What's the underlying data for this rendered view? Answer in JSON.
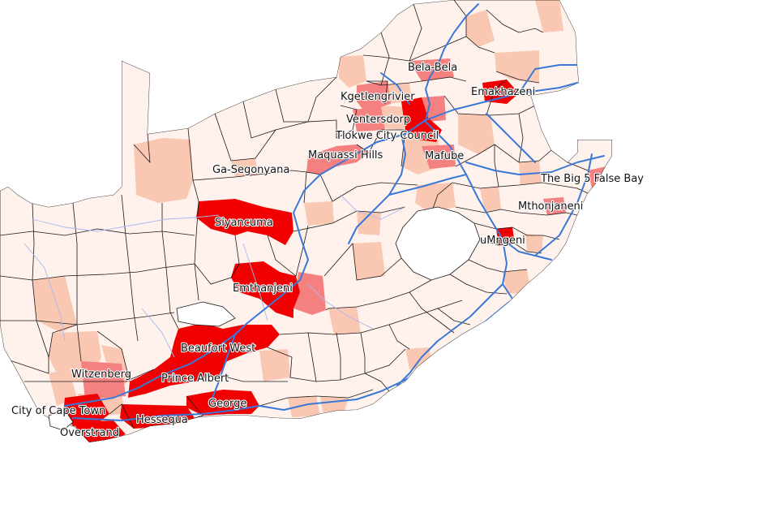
{
  "colors": {
    "none": "#fff1ec",
    "low": "#fac7b3",
    "mid": "#f58080",
    "high": "#f00000",
    "border": "#1a1a1a",
    "road": "#3a78d8",
    "river": "#a9b8f0",
    "background": "#ffffff"
  },
  "labels": [
    {
      "id": "bela-bela",
      "text": "Bela-Bela",
      "level": "mid"
    },
    {
      "id": "emakhazeni",
      "text": "Emakhazeni",
      "level": "high"
    },
    {
      "id": "kgetlengrivier",
      "text": "Kgetlengrivier",
      "level": "mid"
    },
    {
      "id": "ventersdorp",
      "text": "Ventersdorp",
      "level": "mid"
    },
    {
      "id": "tlokwe",
      "text": "Tlokwe City Council",
      "level": "high"
    },
    {
      "id": "maquassi",
      "text": "Maquassi Hills",
      "level": "mid"
    },
    {
      "id": "mafube",
      "text": "Mafube",
      "level": "mid"
    },
    {
      "id": "ga-segonyana",
      "text": "Ga-Segonyana",
      "level": "low"
    },
    {
      "id": "big5",
      "text": "The Big 5 False Bay",
      "level": "mid"
    },
    {
      "id": "mthonjaneni",
      "text": "Mthonjaneni",
      "level": "mid"
    },
    {
      "id": "siyancuma",
      "text": "Siyancuma",
      "level": "high"
    },
    {
      "id": "umngeni",
      "text": "uMngeni",
      "level": "high"
    },
    {
      "id": "emthanjeni",
      "text": "Emthanjeni",
      "level": "high"
    },
    {
      "id": "beaufort-west",
      "text": "Beaufort West",
      "level": "high"
    },
    {
      "id": "witzenberg",
      "text": "Witzenberg",
      "level": "mid"
    },
    {
      "id": "prince-albert",
      "text": "Prince Albert",
      "level": "high"
    },
    {
      "id": "george",
      "text": "George",
      "level": "high"
    },
    {
      "id": "cape-town",
      "text": "City of Cape Town",
      "level": "high"
    },
    {
      "id": "hessequa",
      "text": "Hessequa",
      "level": "high"
    },
    {
      "id": "overstrand",
      "text": "Overstrand",
      "level": "high"
    }
  ]
}
